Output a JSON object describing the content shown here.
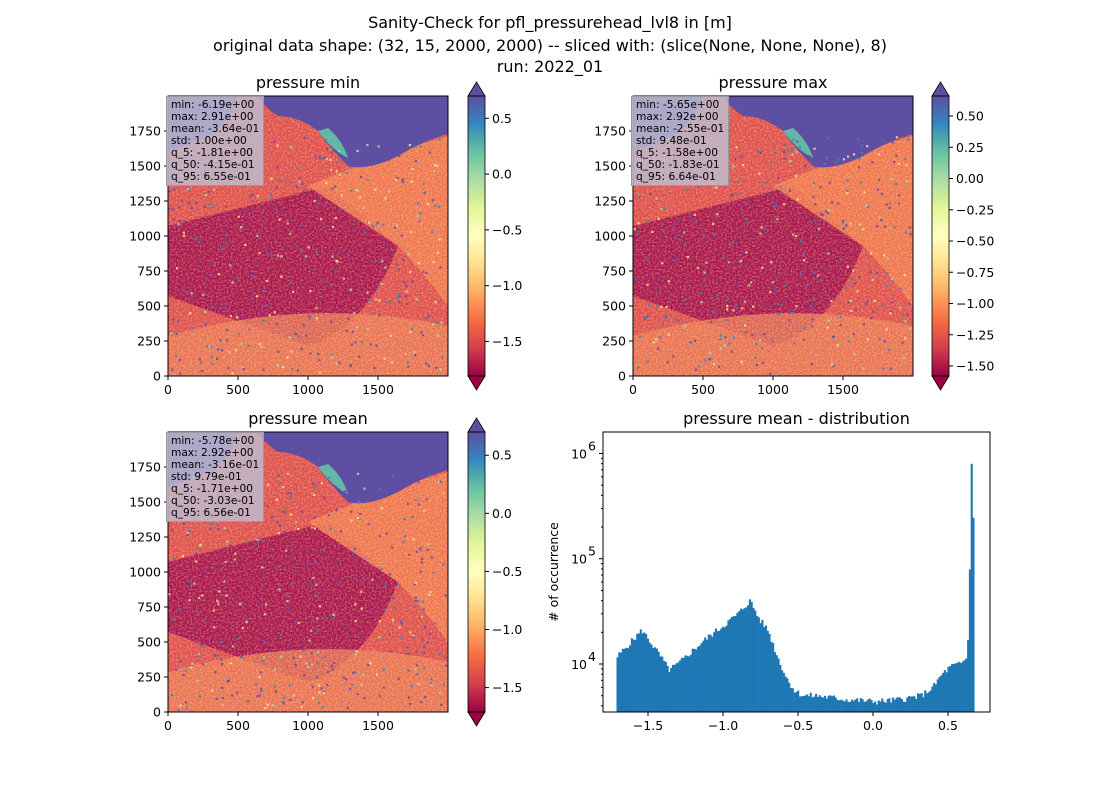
{
  "figure": {
    "title_lines": [
      "Sanity-Check for pfl_pressurehead_lvl8 in [m]",
      "original data shape: (32, 15, 2000, 2000) -- sliced with: (slice(None, None, None), 8)",
      "run: 2022_01"
    ]
  },
  "chart_data": [
    {
      "type": "heatmap",
      "title": "pressure min",
      "xticks": [
        "0",
        "500",
        "1000",
        "1500"
      ],
      "yticks": [
        "0",
        "250",
        "500",
        "750",
        "1000",
        "1250",
        "1500",
        "1750"
      ],
      "xlim": [
        0,
        2000
      ],
      "ylim": [
        0,
        2000
      ],
      "colorbar": {
        "ticks": [
          "0.5",
          "0.0",
          "−0.5",
          "−1.0",
          "−1.5"
        ],
        "range": [
          -1.81,
          0.7
        ],
        "tick_values": [
          0.5,
          0.0,
          -0.5,
          -1.0,
          -1.5
        ],
        "colormap": "Spectral"
      },
      "stats": [
        "min: -6.19e+00",
        "max: 2.91e+00",
        "mean: -3.64e-01",
        "std: 1.00e+00",
        "q_5: -1.81e+00",
        "q_50: -4.15e-01",
        "q_95: 6.55e-01"
      ]
    },
    {
      "type": "heatmap",
      "title": "pressure max",
      "xticks": [
        "0",
        "500",
        "1000",
        "1500"
      ],
      "yticks": [
        "0",
        "250",
        "500",
        "750",
        "1000",
        "1250",
        "1500",
        "1750"
      ],
      "xlim": [
        0,
        2000
      ],
      "ylim": [
        0,
        2000
      ],
      "colorbar": {
        "ticks": [
          "0.50",
          "0.25",
          "0.00",
          "−0.25",
          "−0.50",
          "−0.75",
          "−1.00",
          "−1.25",
          "−1.50"
        ],
        "range": [
          -1.58,
          0.66
        ],
        "tick_values": [
          0.5,
          0.25,
          0.0,
          -0.25,
          -0.5,
          -0.75,
          -1.0,
          -1.25,
          -1.5
        ],
        "colormap": "Spectral"
      },
      "stats": [
        "min: -5.65e+00",
        "max: 2.92e+00",
        "mean: -2.55e-01",
        "std: 9.48e-01",
        "q_5: -1.58e+00",
        "q_50: -1.83e-01",
        "q_95: 6.64e-01"
      ]
    },
    {
      "type": "heatmap",
      "title": "pressure mean",
      "xticks": [
        "0",
        "500",
        "1000",
        "1500"
      ],
      "yticks": [
        "0",
        "250",
        "500",
        "750",
        "1000",
        "1250",
        "1500",
        "1750"
      ],
      "xlim": [
        0,
        2000
      ],
      "ylim": [
        0,
        2000
      ],
      "colorbar": {
        "ticks": [
          "0.5",
          "0.0",
          "−0.5",
          "−1.0",
          "−1.5"
        ],
        "range": [
          -1.71,
          0.7
        ],
        "tick_values": [
          0.5,
          0.0,
          -0.5,
          -1.0,
          -1.5
        ],
        "colormap": "Spectral"
      },
      "stats": [
        "min: -5.78e+00",
        "max: 2.92e+00",
        "mean: -3.16e-01",
        "std: 9.79e-01",
        "q_5: -1.71e+00",
        "q_50: -3.03e-01",
        "q_95: 6.56e-01"
      ]
    },
    {
      "type": "bar",
      "title": "pressure mean - distribution",
      "ylabel": "# of occurrence",
      "yscale": "log",
      "xlim": [
        -1.8,
        0.78
      ],
      "ylim": [
        3500,
        1600000
      ],
      "xticks": [
        -1.5,
        -1.0,
        -0.5,
        0.0,
        0.5
      ],
      "xtick_labels": [
        "−1.5",
        "−1.0",
        "−0.5",
        "0.0",
        "0.5"
      ],
      "yticks": [
        10000,
        100000,
        1000000
      ],
      "ytick_labels": [
        {
          "base": "10",
          "exp": "4"
        },
        {
          "base": "10",
          "exp": "5"
        },
        {
          "base": "10",
          "exp": "6"
        }
      ],
      "bar_color": "#1f77b4",
      "bins": [
        [
          -1.71,
          11500
        ],
        [
          -1.54,
          21000
        ],
        [
          -1.42,
          12000
        ],
        [
          -1.36,
          8800
        ],
        [
          -1.3,
          10000
        ],
        [
          -1.2,
          13500
        ],
        [
          -1.1,
          18000
        ],
        [
          -1.0,
          23000
        ],
        [
          -0.9,
          30000
        ],
        [
          -0.82,
          40000
        ],
        [
          -0.76,
          27000
        ],
        [
          -0.7,
          21000
        ],
        [
          -0.64,
          12000
        ],
        [
          -0.58,
          7500
        ],
        [
          -0.52,
          5500
        ],
        [
          -0.46,
          5000
        ],
        [
          -0.38,
          5000
        ],
        [
          -0.28,
          4800
        ],
        [
          -0.18,
          4600
        ],
        [
          -0.08,
          4500
        ],
        [
          0.02,
          4400
        ],
        [
          0.12,
          4500
        ],
        [
          0.22,
          4700
        ],
        [
          0.32,
          5000
        ],
        [
          0.4,
          6000
        ],
        [
          0.46,
          8000
        ],
        [
          0.52,
          9500
        ],
        [
          0.58,
          10000
        ],
        [
          0.62,
          11000
        ],
        [
          0.64,
          21000
        ],
        [
          0.655,
          1050000
        ],
        [
          0.665,
          260000
        ]
      ]
    }
  ]
}
